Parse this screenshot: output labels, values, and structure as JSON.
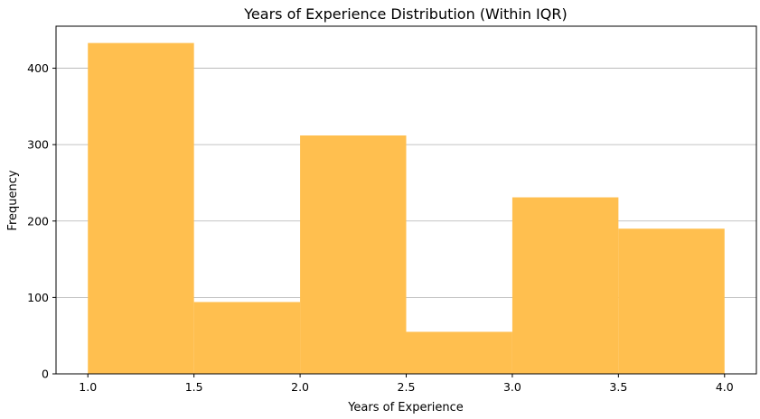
{
  "chart_data": {
    "type": "bar",
    "title": "Years of Experience Distribution (Within IQR)",
    "xlabel": "Years of Experience",
    "ylabel": "Frequency",
    "bin_edges": [
      1.0,
      1.5,
      2.0,
      2.5,
      3.0,
      3.5,
      4.0
    ],
    "values": [
      433,
      94,
      312,
      55,
      231,
      190
    ],
    "xlim": [
      0.85,
      4.15
    ],
    "ylim": [
      0,
      455
    ],
    "x_ticks": [
      1.0,
      1.5,
      2.0,
      2.5,
      3.0,
      3.5,
      4.0
    ],
    "x_tick_labels": [
      "1.0",
      "1.5",
      "2.0",
      "2.5",
      "3.0",
      "3.5",
      "4.0"
    ],
    "y_ticks": [
      0,
      100,
      200,
      300,
      400
    ],
    "y_tick_labels": [
      "0",
      "100",
      "200",
      "300",
      "400"
    ],
    "grid": "horizontal",
    "bar_color": "#FFBF4F"
  }
}
